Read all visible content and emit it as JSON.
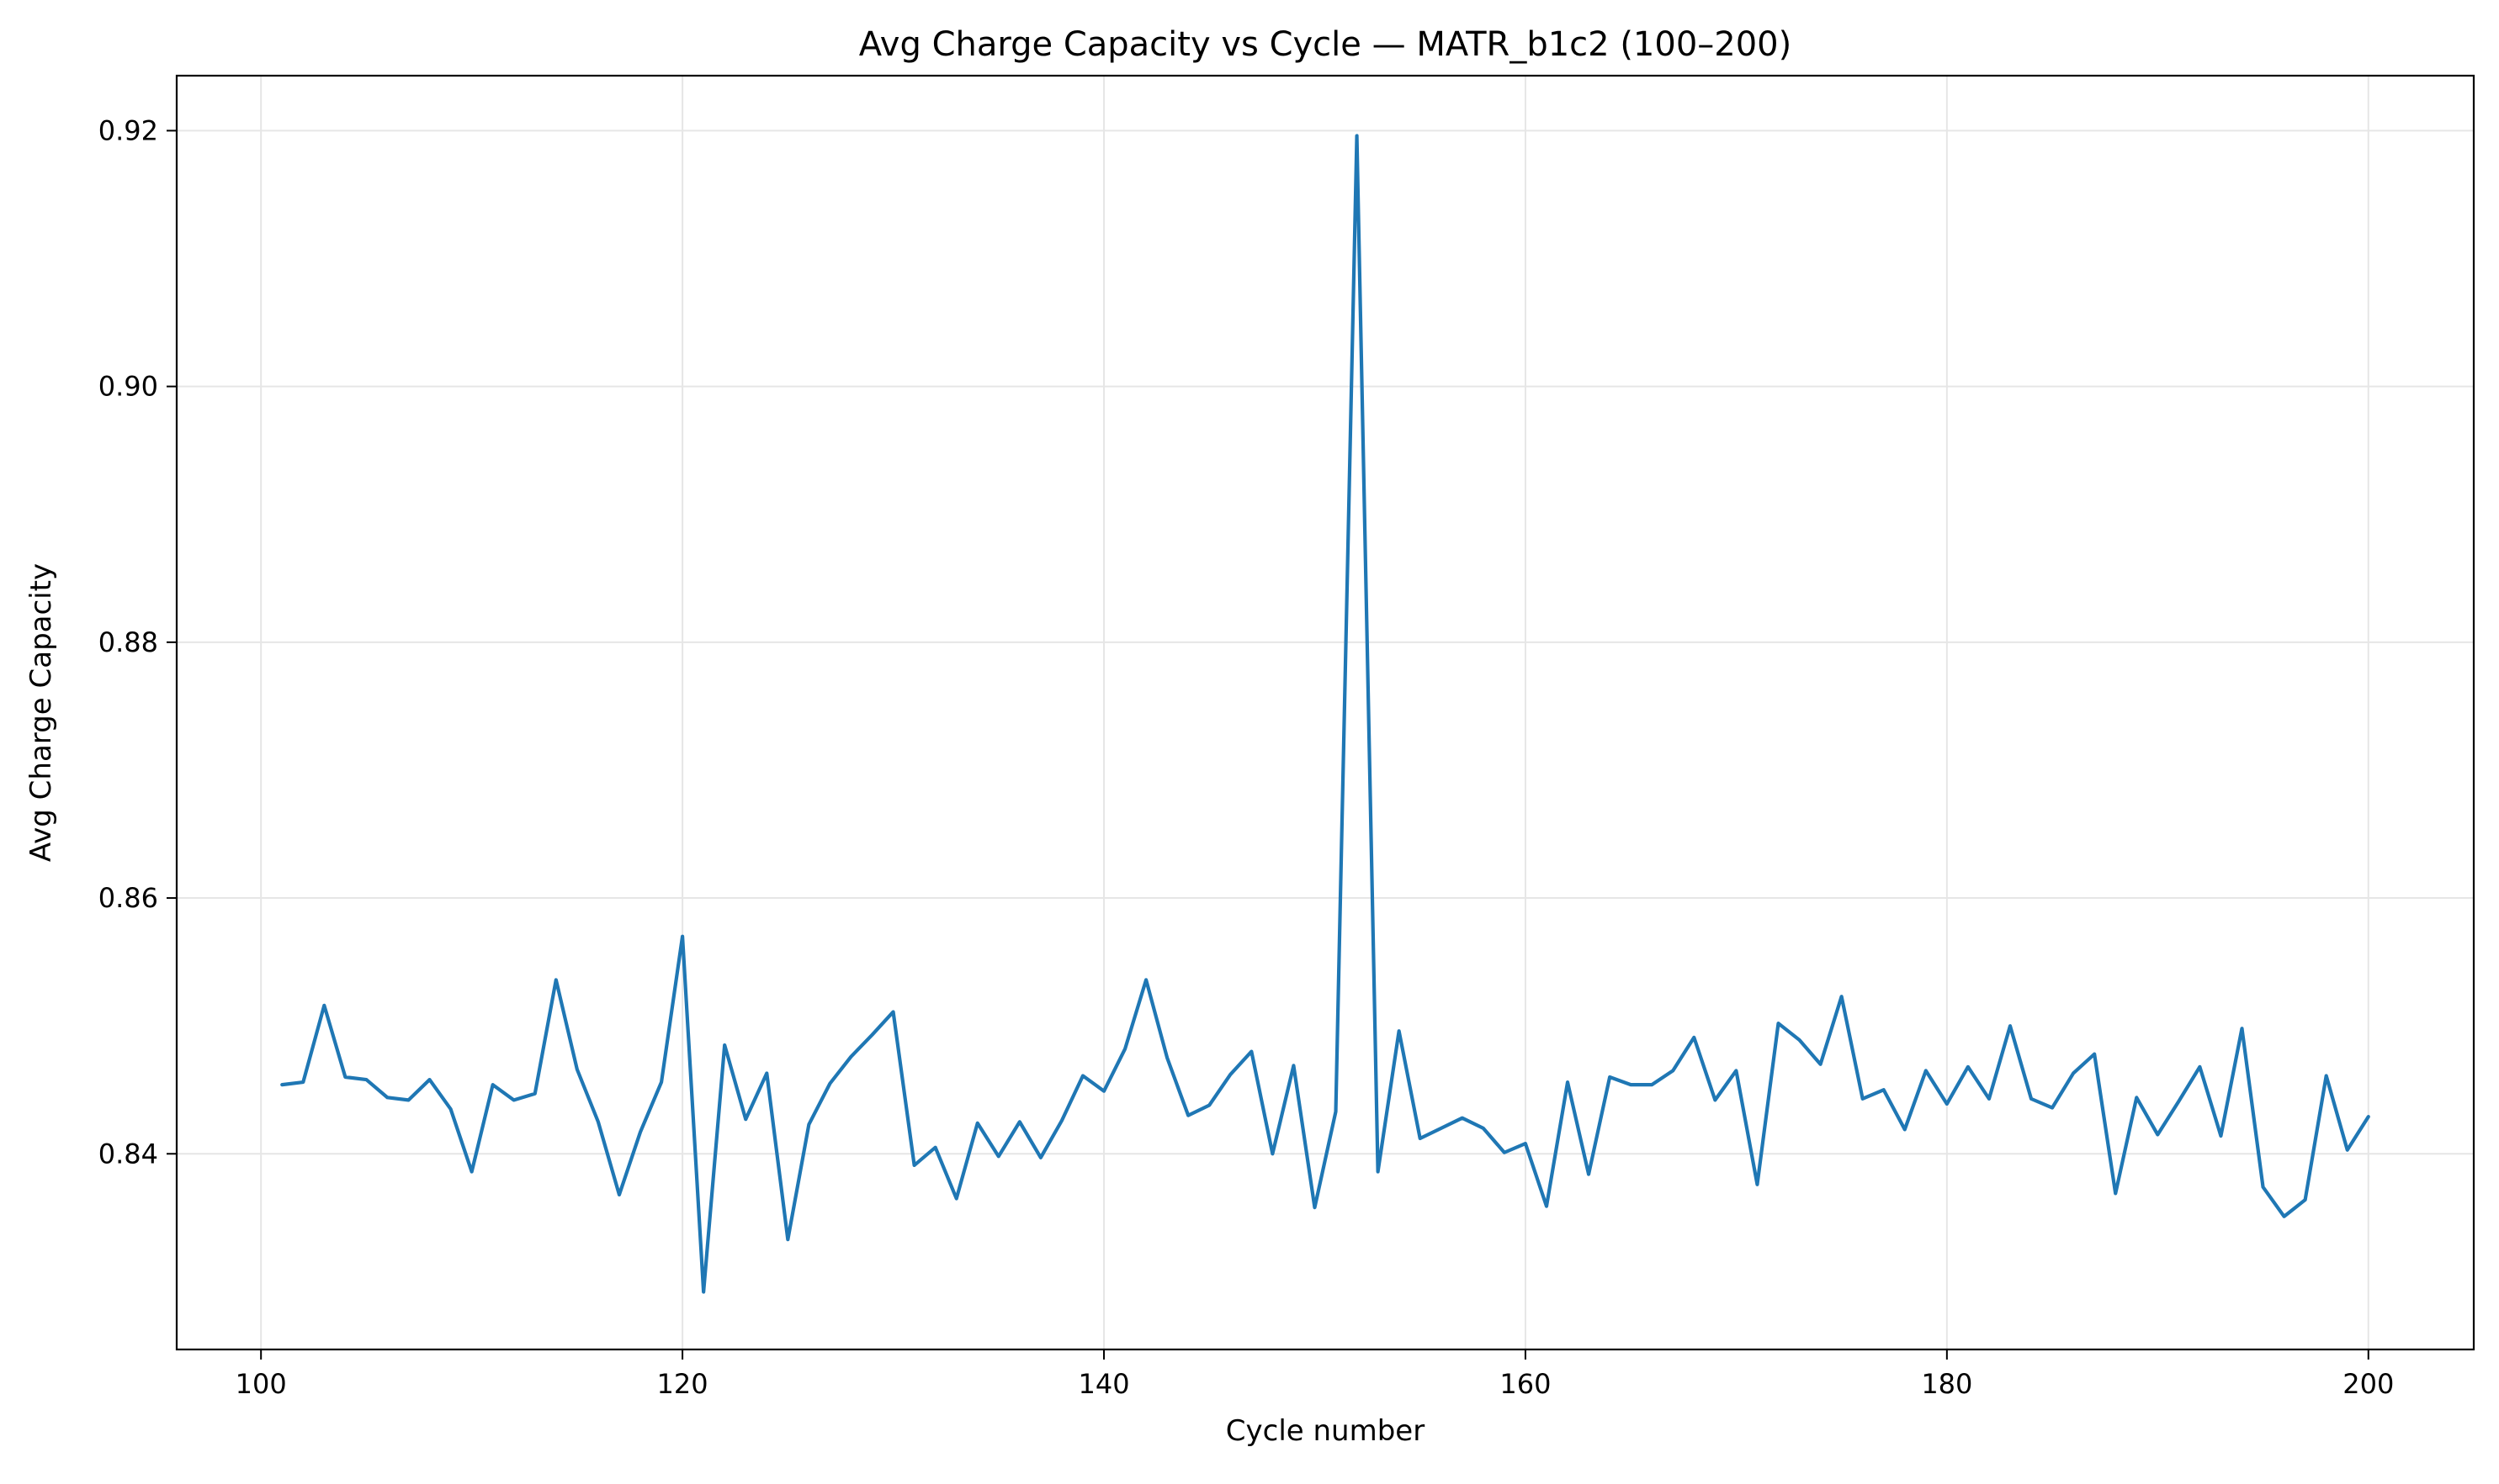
{
  "chart_data": {
    "type": "line",
    "title": "Avg Charge Capacity vs Cycle — MATR_b1c2 (100–200)",
    "xlabel": "Cycle number",
    "ylabel": "Avg Charge Capacity",
    "xlim": [
      96,
      205
    ],
    "ylim": [
      0.8247,
      0.9243
    ],
    "xticks": [
      100,
      120,
      140,
      160,
      180,
      200
    ],
    "yticks": [
      0.84,
      0.86,
      0.88,
      0.9,
      0.92
    ],
    "ytick_labels": [
      "0.84",
      "0.86",
      "0.88",
      "0.90",
      "0.92"
    ],
    "grid": true,
    "colors": {
      "line": "#1f77b4",
      "grid": "#e6e6e6",
      "axes": "#000000"
    },
    "series": [
      {
        "x": [
          101,
          102,
          103,
          104,
          105,
          106,
          107,
          108,
          109,
          110,
          111,
          112,
          113,
          114,
          115,
          116,
          117,
          118,
          119,
          120,
          121,
          122,
          123,
          124,
          125,
          126,
          127,
          128,
          129,
          130,
          131,
          132,
          133,
          134,
          135,
          136,
          137,
          138,
          139,
          140,
          141,
          142,
          143,
          144,
          145,
          146,
          147,
          148,
          149,
          150,
          151,
          152,
          153,
          154,
          155,
          156,
          157,
          158,
          159,
          160,
          161,
          162,
          163,
          164,
          165,
          166,
          167,
          168,
          169,
          170,
          171,
          172,
          173,
          174,
          175,
          176,
          177,
          178,
          179,
          180,
          181,
          182,
          183,
          184,
          185,
          186,
          187,
          188,
          189,
          190,
          191,
          192,
          193,
          194,
          195,
          196,
          197,
          198,
          199,
          200
        ],
        "values": [
          0.8454,
          0.8456,
          0.8516,
          0.846,
          0.8458,
          0.8444,
          0.8442,
          0.8458,
          0.8435,
          0.8386,
          0.8454,
          0.8442,
          0.8447,
          0.8536,
          0.8466,
          0.8425,
          0.8368,
          0.8417,
          0.8456,
          0.857,
          0.8292,
          0.8485,
          0.8427,
          0.8463,
          0.8333,
          0.8423,
          0.8455,
          0.8476,
          0.8493,
          0.8511,
          0.8391,
          0.8405,
          0.8365,
          0.8424,
          0.8398,
          0.8425,
          0.8397,
          0.8426,
          0.8461,
          0.8449,
          0.8482,
          0.8536,
          0.8475,
          0.843,
          0.8438,
          0.8462,
          0.848,
          0.84,
          0.8469,
          0.8358,
          0.8433,
          0.9196,
          0.8386,
          0.8496,
          0.8412,
          0.842,
          0.8428,
          0.842,
          0.8401,
          0.8408,
          0.8359,
          0.8456,
          0.8384,
          0.846,
          0.8454,
          0.8454,
          0.8465,
          0.8491,
          0.8442,
          0.8465,
          0.8376,
          0.8502,
          0.8489,
          0.847,
          0.8523,
          0.8443,
          0.845,
          0.8419,
          0.8465,
          0.8439,
          0.8468,
          0.8443,
          0.85,
          0.8443,
          0.8436,
          0.8463,
          0.8478,
          0.8369,
          0.8444,
          0.8415,
          0.8441,
          0.8468,
          0.8414,
          0.8498,
          0.8374,
          0.8351,
          0.8364,
          0.8461,
          0.8403,
          0.8429
        ]
      }
    ]
  }
}
